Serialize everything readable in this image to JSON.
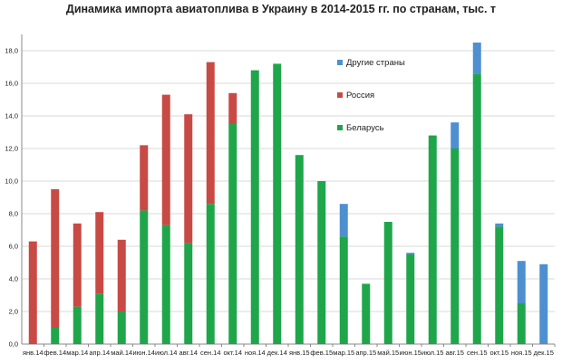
{
  "chart_data": {
    "type": "bar",
    "stacked": true,
    "title": "Динамика импорта авиатоплива в Украину в 2014-2015 гг. по странам, тыс. т",
    "xlabel": "",
    "ylabel": "",
    "ylim": [
      0,
      19
    ],
    "yticks": [
      "0,0",
      "2,0",
      "4,0",
      "6,0",
      "8,0",
      "10,0",
      "12,0",
      "14,0",
      "16,0",
      "18,0"
    ],
    "ytick_values": [
      0,
      2,
      4,
      6,
      8,
      10,
      12,
      14,
      16,
      18
    ],
    "grid": true,
    "legend_position": "top-right",
    "categories": [
      "янв.14",
      "фев.14",
      "мар.14",
      "апр.14",
      "май.14",
      "июн.14",
      "июл.14",
      "авг.14",
      "сен.14",
      "окт.14",
      "ноя.14",
      "дек.14",
      "янв.15",
      "фев.15",
      "мар.15",
      "апр.15",
      "май.15",
      "июн.15",
      "июл.15",
      "авг.15",
      "сен.15",
      "окт.15",
      "ноя.15",
      "дек.15"
    ],
    "series": [
      {
        "name": "Беларусь",
        "color": "#1fa64a",
        "values": [
          0,
          1.0,
          2.3,
          3.1,
          2.0,
          8.2,
          7.3,
          6.2,
          8.6,
          13.5,
          16.8,
          17.2,
          11.6,
          10.0,
          6.6,
          3.7,
          7.5,
          5.5,
          12.8,
          12.0,
          16.6,
          7.2,
          2.5,
          0
        ]
      },
      {
        "name": "Россия",
        "color": "#c84a45",
        "values": [
          6.3,
          8.5,
          5.1,
          5.0,
          4.4,
          4.0,
          8.0,
          7.9,
          8.7,
          1.9,
          0,
          0,
          0,
          0,
          0,
          0,
          0,
          0,
          0,
          0,
          0,
          0,
          0,
          0
        ]
      },
      {
        "name": "Другие страны",
        "color": "#4e8fd0",
        "values": [
          0,
          0,
          0,
          0,
          0,
          0,
          0,
          0,
          0,
          0,
          0,
          0,
          0,
          0,
          2.0,
          0,
          0,
          0.1,
          0,
          1.6,
          1.9,
          0.2,
          2.6,
          4.9
        ]
      }
    ],
    "legend_order": [
      "Другие страны",
      "Россия",
      "Беларусь"
    ]
  }
}
